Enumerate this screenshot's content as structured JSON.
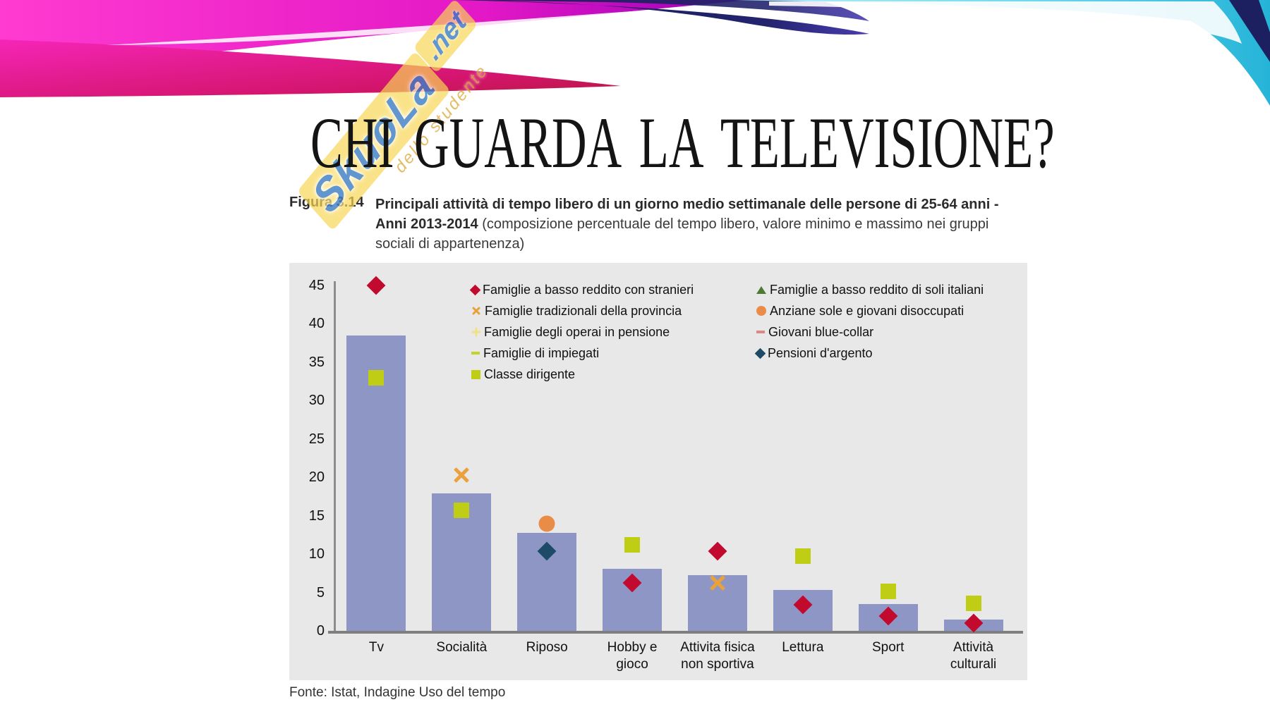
{
  "slide": {
    "title": "CHI GUARDA LA TELEVISIONE?",
    "watermark": {
      "brand": "SkuoLa",
      "tld": ".net",
      "tagline": "dello studente"
    },
    "figure_label": "Figura 3.14",
    "caption_bold": "Principali attività di tempo libero di un giorno medio settimanale delle persone di 25-64 anni - Anni 2013-2014",
    "caption_normal": " (composizione percentuale del tempo libero, valore minimo e massimo nei gruppi sociali di appartenenza)",
    "source": "Fonte: Istat, Indagine Uso del tempo"
  },
  "chart_data": {
    "type": "bar",
    "title": "Principali attività di tempo libero di un giorno medio settimanale delle persone di 25-64 anni - Anni 2013-2014",
    "xlabel": "",
    "ylabel": "",
    "ylim": [
      0,
      45
    ],
    "yticks": [
      0,
      5,
      10,
      15,
      20,
      25,
      30,
      35,
      40,
      45
    ],
    "grid": false,
    "legend_position": "inside-top",
    "panel_background": "#e8e8e8",
    "bar_color": "#8e96c5",
    "categories": [
      "Tv",
      "Socialità",
      "Riposo",
      "Hobby e gioco",
      "Attivita fisica non sportiva",
      "Lettura",
      "Sport",
      "Attività culturali"
    ],
    "category_labels": [
      [
        "Tv"
      ],
      [
        "Socialità"
      ],
      [
        "Riposo"
      ],
      [
        "Hobby e",
        "gioco"
      ],
      [
        "Attivita fisica",
        "non sportiva"
      ],
      [
        "Lettura"
      ],
      [
        "Sport"
      ],
      [
        "Attività",
        "culturali"
      ]
    ],
    "bar_values": [
      38.5,
      17.9,
      12.8,
      8.1,
      7.3,
      5.3,
      3.5,
      1.5
    ],
    "series": [
      {
        "name": "Famiglie a basso reddito con stranieri",
        "marker": "diamond",
        "color": "#c10a2d",
        "points": [
          {
            "category": "Tv",
            "value": 45.0
          },
          {
            "category": "Hobby e gioco",
            "value": 6.2
          },
          {
            "category": "Attivita fisica non sportiva",
            "value": 10.4
          },
          {
            "category": "Lettura",
            "value": 3.4
          },
          {
            "category": "Sport",
            "value": 1.9
          },
          {
            "category": "Attività culturali",
            "value": 1.0
          }
        ]
      },
      {
        "name": "Famiglie a basso reddito di soli italiani",
        "marker": "triangle",
        "color": "#4e7b31",
        "points": []
      },
      {
        "name": "Famiglie tradizionali della provincia",
        "marker": "x",
        "color": "#e9a13b",
        "points": [
          {
            "category": "Socialità",
            "value": 20.3
          },
          {
            "category": "Attivita fisica non sportiva",
            "value": 6.2
          }
        ]
      },
      {
        "name": "Anziane sole e giovani disoccupati",
        "marker": "circle",
        "color": "#e98c48",
        "points": [
          {
            "category": "Riposo",
            "value": 14.0
          }
        ]
      },
      {
        "name": "Famiglie degli operai in pensione",
        "marker": "plus",
        "color": "#efe18a",
        "points": []
      },
      {
        "name": "Giovani blue-collar",
        "marker": "dash",
        "color": "#de8787",
        "points": []
      },
      {
        "name": "Famiglie di impiegati",
        "marker": "dash",
        "color": "#c4d230",
        "points": []
      },
      {
        "name": "Pensioni d'argento",
        "marker": "diamond",
        "color": "#1c4a67",
        "points": [
          {
            "category": "Riposo",
            "value": 10.4
          }
        ]
      },
      {
        "name": "Classe dirigente",
        "marker": "square",
        "color": "#bfce15",
        "points": [
          {
            "category": "Tv",
            "value": 33.0
          },
          {
            "category": "Socialità",
            "value": 15.7
          },
          {
            "category": "Hobby e gioco",
            "value": 11.2
          },
          {
            "category": "Lettura",
            "value": 9.7
          },
          {
            "category": "Sport",
            "value": 5.1
          },
          {
            "category": "Attività culturali",
            "value": 3.6
          }
        ]
      }
    ],
    "legend_layout": {
      "left": [
        0,
        2,
        4,
        6,
        8
      ],
      "right": [
        1,
        3,
        5,
        7
      ]
    },
    "header_colors": {
      "magenta": "#ee22c4",
      "deep_pink": "#c41a55",
      "purple": "#8a10b8",
      "navy": "#171b4e",
      "cyan": "#45c6e4"
    }
  }
}
